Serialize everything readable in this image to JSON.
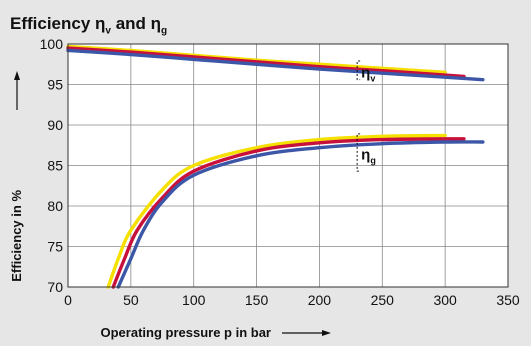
{
  "chart_data": {
    "type": "line",
    "title": {
      "text": "Efficiency η",
      "sub1": "v",
      "joiner": " and η",
      "sub2": "g"
    },
    "xlabel": "Operating pressure p in bar",
    "ylabel": "Efficiency in %",
    "xlim": [
      0,
      350
    ],
    "ylim": [
      70,
      100
    ],
    "xticks": [
      "0",
      "50",
      "100",
      "150",
      "200",
      "250",
      "300",
      "350"
    ],
    "yticks": [
      "70",
      "75",
      "80",
      "85",
      "90",
      "95",
      "100"
    ],
    "grid": true,
    "legend": "none",
    "groups": [
      {
        "label_main": "η",
        "label_sub": "v",
        "bracket_range": [
          95.6,
          97.9
        ]
      },
      {
        "label_main": "η",
        "label_sub": "g",
        "bracket_range": [
          84.3,
          88.9
        ]
      }
    ],
    "series": [
      {
        "group": 0,
        "color": "#f5e000",
        "x": [
          0,
          50,
          100,
          150,
          200,
          250,
          300
        ],
        "y": [
          99.7,
          99.2,
          98.6,
          98.0,
          97.5,
          97.0,
          96.5
        ]
      },
      {
        "group": 0,
        "color": "#c8103c",
        "x": [
          0,
          50,
          100,
          150,
          200,
          250,
          315
        ],
        "y": [
          99.5,
          99.0,
          98.4,
          97.8,
          97.2,
          96.7,
          96.0
        ]
      },
      {
        "group": 0,
        "color": "#3d57a8",
        "x": [
          0,
          50,
          100,
          150,
          200,
          250,
          300,
          330
        ],
        "y": [
          99.2,
          98.7,
          98.1,
          97.5,
          96.9,
          96.4,
          95.9,
          95.6
        ]
      },
      {
        "group": 1,
        "color": "#f5e000",
        "x": [
          32,
          40,
          50,
          75,
          100,
          150,
          200,
          250,
          300
        ],
        "y": [
          70,
          73.5,
          77,
          82,
          85,
          87.2,
          88.2,
          88.6,
          88.7
        ]
      },
      {
        "group": 1,
        "color": "#c8103c",
        "x": [
          36,
          45,
          55,
          75,
          100,
          150,
          200,
          250,
          315
        ],
        "y": [
          70,
          73.5,
          77,
          81,
          84.3,
          86.8,
          87.8,
          88.2,
          88.3
        ]
      },
      {
        "group": 1,
        "color": "#3d57a8",
        "x": [
          40,
          50,
          60,
          75,
          100,
          150,
          200,
          250,
          300,
          330
        ],
        "y": [
          70,
          73.5,
          77,
          80.5,
          83.8,
          86.2,
          87.2,
          87.7,
          87.9,
          87.9
        ]
      }
    ]
  }
}
